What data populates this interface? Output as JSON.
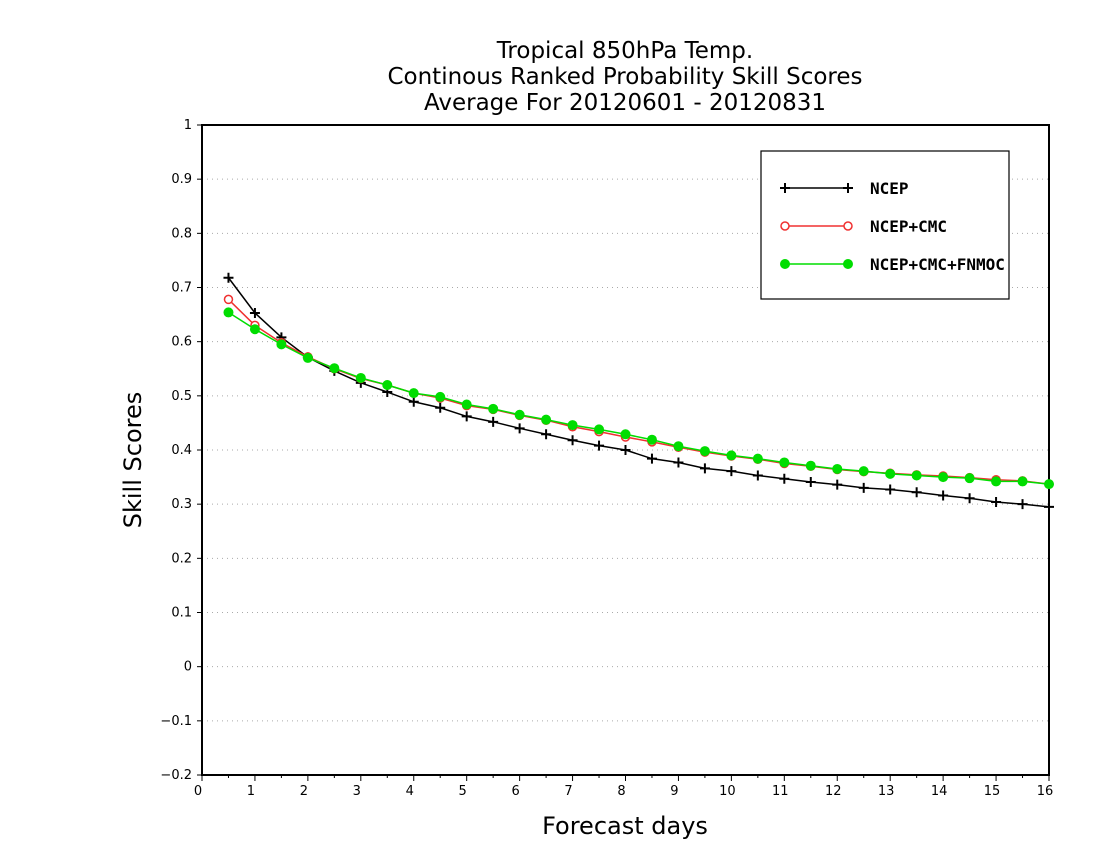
{
  "chart_data": {
    "type": "line",
    "title_lines": [
      "Tropical 850hPa Temp.",
      "Continous Ranked Probability Skill Scores",
      "Average For 20120601 - 20120831"
    ],
    "xlabel": "Forecast days",
    "ylabel": "Skill Scores",
    "xlim": [
      0,
      16
    ],
    "ylim": [
      -0.2,
      1
    ],
    "x_ticks": [
      "0",
      "1",
      "2",
      "3",
      "4",
      "5",
      "6",
      "7",
      "8",
      "9",
      "10",
      "11",
      "12",
      "13",
      "14",
      "15",
      "16"
    ],
    "y_ticks": [
      "−0.2",
      "−0.1",
      "0",
      "0.1",
      "0.2",
      "0.3",
      "0.4",
      "0.5",
      "0.6",
      "0.7",
      "0.8",
      "0.9",
      "1"
    ],
    "grid": "horizontal dotted",
    "legend_position": "top-right",
    "x": [
      0.5,
      1,
      1.5,
      2,
      2.5,
      3,
      3.5,
      4,
      4.5,
      5,
      5.5,
      6,
      6.5,
      7,
      7.5,
      8,
      8.5,
      9,
      9.5,
      10,
      10.5,
      11,
      11.5,
      12,
      12.5,
      13,
      13.5,
      14,
      14.5,
      15,
      15.5,
      16
    ],
    "series": [
      {
        "name": "NCEP",
        "color": "#000000",
        "marker": "plus",
        "values": [
          0.718,
          0.653,
          0.608,
          0.571,
          0.546,
          0.524,
          0.507,
          0.489,
          0.478,
          0.462,
          0.452,
          0.44,
          0.429,
          0.418,
          0.408,
          0.4,
          0.384,
          0.377,
          0.366,
          0.361,
          0.353,
          0.347,
          0.341,
          0.336,
          0.33,
          0.327,
          0.322,
          0.316,
          0.311,
          0.304,
          0.3,
          0.295
        ]
      },
      {
        "name": "NCEP+CMC",
        "color": "#f03030",
        "marker": "open-circle",
        "values": [
          0.678,
          0.63,
          0.598,
          0.572,
          0.55,
          0.532,
          0.52,
          0.505,
          0.496,
          0.482,
          0.475,
          0.464,
          0.455,
          0.443,
          0.434,
          0.424,
          0.415,
          0.405,
          0.396,
          0.389,
          0.383,
          0.375,
          0.37,
          0.364,
          0.36,
          0.357,
          0.354,
          0.352,
          0.349,
          0.345,
          0.343,
          0.337
        ]
      },
      {
        "name": "NCEP+CMC+FNMOC",
        "color": "#00dd00",
        "marker": "filled-circle",
        "values": [
          0.654,
          0.623,
          0.595,
          0.57,
          0.551,
          0.533,
          0.52,
          0.505,
          0.498,
          0.484,
          0.476,
          0.465,
          0.456,
          0.446,
          0.438,
          0.429,
          0.419,
          0.407,
          0.398,
          0.39,
          0.384,
          0.377,
          0.371,
          0.365,
          0.361,
          0.356,
          0.353,
          0.35,
          0.348,
          0.342,
          0.342,
          0.337
        ]
      }
    ]
  }
}
